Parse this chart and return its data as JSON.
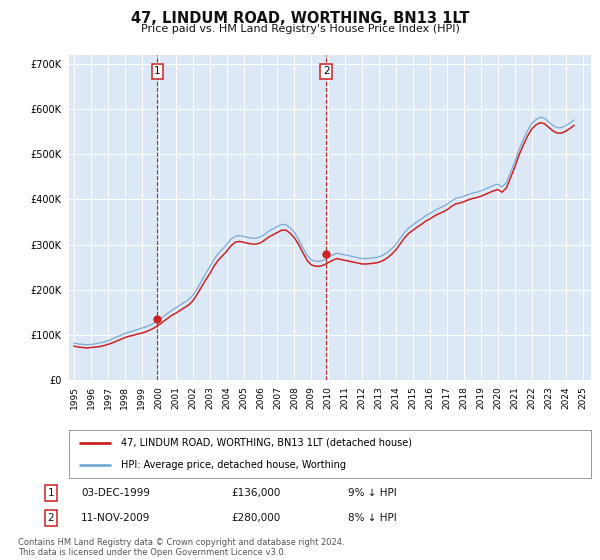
{
  "title": "47, LINDUM ROAD, WORTHING, BN13 1LT",
  "subtitle": "Price paid vs. HM Land Registry's House Price Index (HPI)",
  "ylim": [
    0,
    720000
  ],
  "yticks": [
    0,
    100000,
    200000,
    300000,
    400000,
    500000,
    600000,
    700000
  ],
  "ytick_labels": [
    "£0",
    "£100K",
    "£200K",
    "£300K",
    "£400K",
    "£500K",
    "£600K",
    "£700K"
  ],
  "xlim_start": 1994.7,
  "xlim_end": 2025.5,
  "bg_color": "#dce8f5",
  "grid_color": "#ffffff",
  "hpi_line_color": "#7aaad4",
  "price_line_color": "#cc2222",
  "sale1_x": 1999.92,
  "sale1_y": 136000,
  "sale1_label": "1",
  "sale1_date": "03-DEC-1999",
  "sale1_price": "£136,000",
  "sale1_hpi": "9% ↓ HPI",
  "sale2_x": 2009.87,
  "sale2_y": 280000,
  "sale2_label": "2",
  "sale2_date": "11-NOV-2009",
  "sale2_price": "£280,000",
  "sale2_hpi": "8% ↓ HPI",
  "legend_label1": "47, LINDUM ROAD, WORTHING, BN13 1LT (detached house)",
  "legend_label2": "HPI: Average price, detached house, Worthing",
  "footer": "Contains HM Land Registry data © Crown copyright and database right 2024.\nThis data is licensed under the Open Government Licence v3.0.",
  "hpi_data_x": [
    1995.0,
    1995.25,
    1995.5,
    1995.75,
    1996.0,
    1996.25,
    1996.5,
    1996.75,
    1997.0,
    1997.25,
    1997.5,
    1997.75,
    1998.0,
    1998.25,
    1998.5,
    1998.75,
    1999.0,
    1999.25,
    1999.5,
    1999.75,
    2000.0,
    2000.25,
    2000.5,
    2000.75,
    2001.0,
    2001.25,
    2001.5,
    2001.75,
    2002.0,
    2002.25,
    2002.5,
    2002.75,
    2003.0,
    2003.25,
    2003.5,
    2003.75,
    2004.0,
    2004.25,
    2004.5,
    2004.75,
    2005.0,
    2005.25,
    2005.5,
    2005.75,
    2006.0,
    2006.25,
    2006.5,
    2006.75,
    2007.0,
    2007.25,
    2007.5,
    2007.75,
    2008.0,
    2008.25,
    2008.5,
    2008.75,
    2009.0,
    2009.25,
    2009.5,
    2009.75,
    2010.0,
    2010.25,
    2010.5,
    2010.75,
    2011.0,
    2011.25,
    2011.5,
    2011.75,
    2012.0,
    2012.25,
    2012.5,
    2012.75,
    2013.0,
    2013.25,
    2013.5,
    2013.75,
    2014.0,
    2014.25,
    2014.5,
    2014.75,
    2015.0,
    2015.25,
    2015.5,
    2015.75,
    2016.0,
    2016.25,
    2016.5,
    2016.75,
    2017.0,
    2017.25,
    2017.5,
    2017.75,
    2018.0,
    2018.25,
    2018.5,
    2018.75,
    2019.0,
    2019.25,
    2019.5,
    2019.75,
    2020.0,
    2020.25,
    2020.5,
    2020.75,
    2021.0,
    2021.25,
    2021.5,
    2021.75,
    2022.0,
    2022.25,
    2022.5,
    2022.75,
    2023.0,
    2023.25,
    2023.5,
    2023.75,
    2024.0,
    2024.25,
    2024.5
  ],
  "hpi_data_y": [
    82000,
    80000,
    79000,
    78000,
    79000,
    80000,
    82000,
    84000,
    87000,
    91000,
    95000,
    99000,
    103000,
    106000,
    109000,
    112000,
    115000,
    118000,
    122000,
    127000,
    133000,
    140000,
    147000,
    154000,
    160000,
    166000,
    172000,
    178000,
    187000,
    201000,
    218000,
    235000,
    250000,
    267000,
    280000,
    290000,
    300000,
    312000,
    318000,
    320000,
    318000,
    316000,
    314000,
    314000,
    317000,
    323000,
    330000,
    335000,
    340000,
    345000,
    344000,
    337000,
    327000,
    311000,
    293000,
    276000,
    266000,
    263000,
    263000,
    266000,
    271000,
    277000,
    281000,
    279000,
    277000,
    275000,
    273000,
    271000,
    269000,
    269000,
    270000,
    271000,
    273000,
    277000,
    283000,
    291000,
    301000,
    314000,
    327000,
    337000,
    344000,
    351000,
    357000,
    364000,
    369000,
    375000,
    380000,
    384000,
    389000,
    396000,
    402000,
    404000,
    407000,
    411000,
    414000,
    416000,
    419000,
    423000,
    427000,
    431000,
    434000,
    428000,
    437000,
    460000,
    483000,
    510000,
    532000,
    552000,
    568000,
    577000,
    582000,
    580000,
    572000,
    564000,
    559000,
    559000,
    563000,
    569000,
    576000
  ],
  "price_data_x": [
    1995.0,
    1995.25,
    1995.5,
    1995.75,
    1996.0,
    1996.25,
    1996.5,
    1996.75,
    1997.0,
    1997.25,
    1997.5,
    1997.75,
    1998.0,
    1998.25,
    1998.5,
    1998.75,
    1999.0,
    1999.25,
    1999.5,
    1999.75,
    2000.0,
    2000.25,
    2000.5,
    2000.75,
    2001.0,
    2001.25,
    2001.5,
    2001.75,
    2002.0,
    2002.25,
    2002.5,
    2002.75,
    2003.0,
    2003.25,
    2003.5,
    2003.75,
    2004.0,
    2004.25,
    2004.5,
    2004.75,
    2005.0,
    2005.25,
    2005.5,
    2005.75,
    2006.0,
    2006.25,
    2006.5,
    2006.75,
    2007.0,
    2007.25,
    2007.5,
    2007.75,
    2008.0,
    2008.25,
    2008.5,
    2008.75,
    2009.0,
    2009.25,
    2009.5,
    2009.75,
    2010.0,
    2010.25,
    2010.5,
    2010.75,
    2011.0,
    2011.25,
    2011.5,
    2011.75,
    2012.0,
    2012.25,
    2012.5,
    2012.75,
    2013.0,
    2013.25,
    2013.5,
    2013.75,
    2014.0,
    2014.25,
    2014.5,
    2014.75,
    2015.0,
    2015.25,
    2015.5,
    2015.75,
    2016.0,
    2016.25,
    2016.5,
    2016.75,
    2017.0,
    2017.25,
    2017.5,
    2017.75,
    2018.0,
    2018.25,
    2018.5,
    2018.75,
    2019.0,
    2019.25,
    2019.5,
    2019.75,
    2020.0,
    2020.25,
    2020.5,
    2020.75,
    2021.0,
    2021.25,
    2021.5,
    2021.75,
    2022.0,
    2022.25,
    2022.5,
    2022.75,
    2023.0,
    2023.25,
    2023.5,
    2023.75,
    2024.0,
    2024.25,
    2024.5
  ],
  "price_data_y": [
    75000,
    73000,
    72000,
    71000,
    72000,
    73000,
    74000,
    76000,
    79000,
    82000,
    86000,
    90000,
    94000,
    97000,
    99000,
    102000,
    104000,
    107000,
    111000,
    116000,
    122000,
    129000,
    136000,
    143000,
    148000,
    154000,
    160000,
    166000,
    175000,
    189000,
    205000,
    221000,
    235000,
    252000,
    265000,
    275000,
    285000,
    297000,
    305000,
    307000,
    305000,
    303000,
    301000,
    301000,
    304000,
    310000,
    317000,
    322000,
    327000,
    332000,
    332000,
    325000,
    315000,
    300000,
    282000,
    265000,
    255000,
    252000,
    252000,
    255000,
    260000,
    265000,
    269000,
    267000,
    265000,
    263000,
    261000,
    259000,
    257000,
    257000,
    258000,
    259000,
    261000,
    265000,
    271000,
    279000,
    289000,
    302000,
    315000,
    325000,
    332000,
    339000,
    345000,
    352000,
    357000,
    363000,
    368000,
    372000,
    377000,
    384000,
    390000,
    392000,
    395000,
    399000,
    402000,
    404000,
    407000,
    411000,
    415000,
    419000,
    422000,
    416000,
    425000,
    448000,
    471000,
    498000,
    520000,
    540000,
    556000,
    565000,
    570000,
    568000,
    560000,
    552000,
    547000,
    547000,
    551000,
    557000,
    564000
  ]
}
